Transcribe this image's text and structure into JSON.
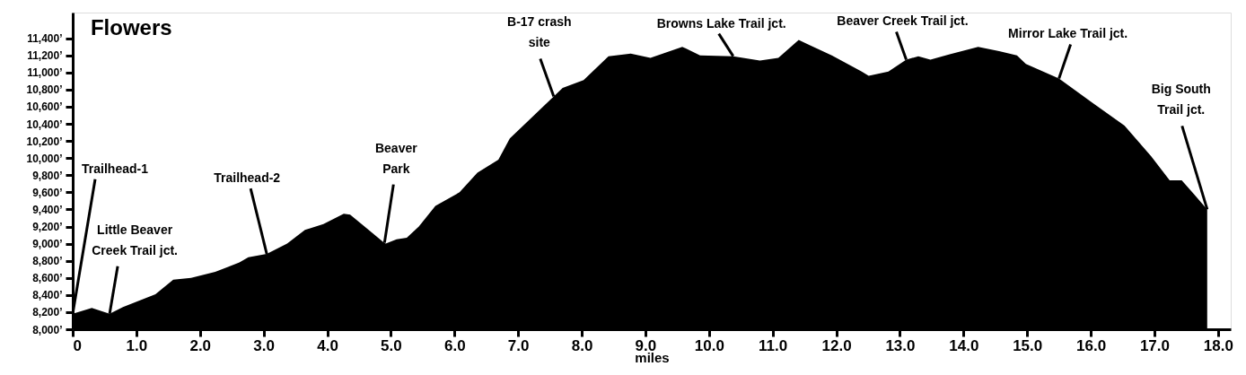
{
  "chart_data": {
    "type": "area",
    "title": "Flowers",
    "xlabel": "miles",
    "x": [
      0,
      0.3,
      0.58,
      0.79,
      1.3,
      1.58,
      1.86,
      2.24,
      2.62,
      2.76,
      3.05,
      3.37,
      3.65,
      3.94,
      4.26,
      4.36,
      4.88,
      4.92,
      5.09,
      5.25,
      5.44,
      5.7,
      6.08,
      6.36,
      6.69,
      6.87,
      7.14,
      7.56,
      7.7,
      8.03,
      8.42,
      8.77,
      9.08,
      9.58,
      9.86,
      10.38,
      10.8,
      11.09,
      11.41,
      11.55,
      11.93,
      12.4,
      12.51,
      12.82,
      13.1,
      13.29,
      13.48,
      13.77,
      14.23,
      14.56,
      14.84,
      14.98,
      15.5,
      16.02,
      16.53,
      16.95,
      17.24,
      17.43,
      17.62,
      17.83
    ],
    "series": [
      {
        "color": "#000000",
        "values": [
          8180,
          8250,
          8180,
          8260,
          8410,
          8580,
          8600,
          8670,
          8780,
          8840,
          8880,
          9000,
          9160,
          9230,
          9350,
          9340,
          9020,
          9000,
          9050,
          9070,
          9200,
          9440,
          9600,
          9830,
          9980,
          10230,
          10420,
          10720,
          10820,
          10910,
          11190,
          11220,
          11170,
          11300,
          11200,
          11190,
          11140,
          11170,
          11380,
          11330,
          11200,
          11010,
          10960,
          11010,
          11150,
          11190,
          11150,
          11210,
          11300,
          11250,
          11200,
          11100,
          10930,
          10650,
          10380,
          10020,
          9740,
          9740,
          9580,
          9400
        ]
      }
    ],
    "xlim": [
      0,
      18.2
    ],
    "ylim": [
      8000,
      11700
    ],
    "xticks": [
      0,
      {
        "value": 1,
        "label": "1.0"
      },
      {
        "value": 2,
        "label": "2.0"
      },
      {
        "value": 3,
        "label": "3.0"
      },
      {
        "value": 4,
        "label": "4.0"
      },
      {
        "value": 5,
        "label": "5.0"
      },
      {
        "value": 6,
        "label": "6.0"
      },
      {
        "value": 7,
        "label": "7.0"
      },
      {
        "value": 8,
        "label": "8.0"
      },
      {
        "value": 9,
        "label": "9.0"
      },
      {
        "value": 10,
        "label": "10.0"
      },
      {
        "value": 11,
        "label": "11.0"
      },
      {
        "value": 12,
        "label": "12.0"
      },
      {
        "value": 13,
        "label": "13.0"
      },
      {
        "value": 14,
        "label": "14.0"
      },
      {
        "value": 15,
        "label": "15.0"
      },
      {
        "value": 16,
        "label": "16.0"
      },
      {
        "value": 17,
        "label": "17.0"
      },
      {
        "value": 18,
        "label": "18.0"
      }
    ],
    "yticks": [
      {
        "value": 8000,
        "label": "8,000’"
      },
      {
        "value": 8200,
        "label": "8,200’"
      },
      {
        "value": 8400,
        "label": "8,400’"
      },
      {
        "value": 8600,
        "label": "8,600’"
      },
      {
        "value": 8800,
        "label": "8,800’"
      },
      {
        "value": 9000,
        "label": "9,000’"
      },
      {
        "value": 9200,
        "label": "9,200’"
      },
      {
        "value": 9400,
        "label": "9,400’"
      },
      {
        "value": 9600,
        "label": "9,600’"
      },
      {
        "value": 9800,
        "label": "9,800’"
      },
      {
        "value": 10000,
        "label": "10,000’"
      },
      {
        "value": 10200,
        "label": "10,200’"
      },
      {
        "value": 10400,
        "label": "10,400’"
      },
      {
        "value": 10600,
        "label": "10,600’"
      },
      {
        "value": 10800,
        "label": "10,800’"
      },
      {
        "value": 11000,
        "label": "11,000’"
      },
      {
        "value": 11200,
        "label": "11,200’"
      },
      {
        "value": 11400,
        "label": "11,400’"
      }
    ],
    "grid": false,
    "annotations": [
      {
        "text": "Trailhead-1",
        "x": 0,
        "y": 8180
      },
      {
        "text": "Little Beaver\nCreek Trail jct.",
        "x": 0.58,
        "y": 8180
      },
      {
        "text": "Trailhead-2",
        "x": 3.05,
        "y": 8880
      },
      {
        "text": "Beaver\nPark",
        "x": 4.9,
        "y": 9010
      },
      {
        "text": "B-17 crash\nsite",
        "x": 7.56,
        "y": 10720
      },
      {
        "text": "Browns Lake Trail jct.",
        "x": 10.38,
        "y": 11190
      },
      {
        "text": "Beaver Creek Trail jct.",
        "x": 13.1,
        "y": 11150
      },
      {
        "text": "Mirror Lake Trail jct.",
        "x": 15.5,
        "y": 10930
      },
      {
        "text": "Big South\nTrail jct.",
        "x": 17.83,
        "y": 9400
      }
    ]
  }
}
